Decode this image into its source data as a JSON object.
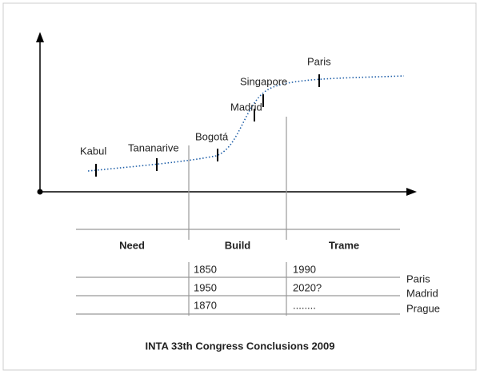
{
  "cities": [
    "Kabul",
    "Tananarive",
    "Bogotá",
    "Madrid",
    "Singapore",
    "Paris"
  ],
  "phases": [
    "Need",
    "Build",
    "Trame"
  ],
  "table": {
    "rows": [
      [
        "1850",
        "1990",
        "Paris"
      ],
      [
        "1950",
        "2020?",
        "Madrid"
      ],
      [
        "1870",
        "........",
        "Prague"
      ]
    ]
  },
  "caption": "INTA 33th Congress Conclusions 2009"
}
